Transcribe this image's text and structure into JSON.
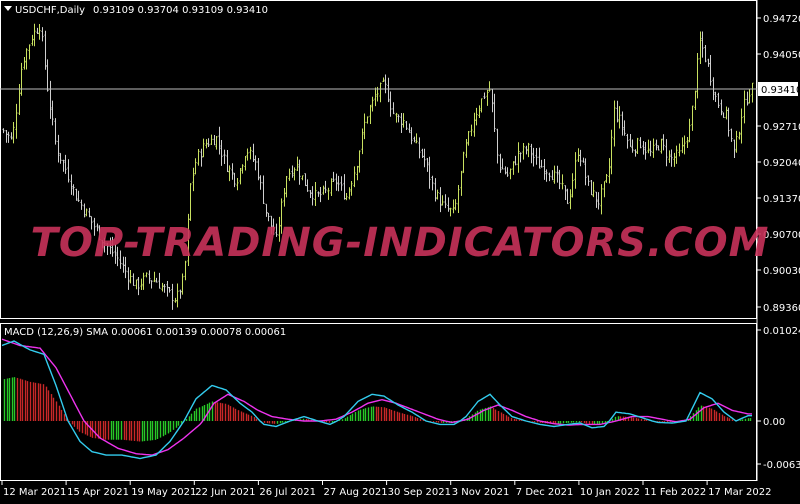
{
  "main_chart": {
    "header_label": "USDCHF,Daily",
    "ohlc_label": "0.93109 0.93704 0.93109 0.93410",
    "bid_line_label": "0.93410",
    "price_axis": [
      "0.94720",
      "0.94050",
      "0.92710",
      "0.92040",
      "0.91370",
      "0.90700",
      "0.90030",
      "0.89360"
    ]
  },
  "indicator": {
    "header_label": "MACD (12,26,9) SMA 0.00061 0.00139 0.00078 0.00061",
    "axis_labels": [
      "0.01024",
      "0.00",
      "-0.00631"
    ]
  },
  "time_axis": [
    "12 Mar 2021",
    "15 Apr 2021",
    "19 May 2021",
    "22 Jun 2021",
    "26 Jul 2021",
    "27 Aug 2021",
    "30 Sep 2021",
    "3 Nov 2021",
    "7 Dec 2021",
    "10 Jan 2022",
    "11 Feb 2022",
    "17 Mar 2022"
  ],
  "watermark": "TOP-TRADING-INDICATORS.COM",
  "colors": {
    "bull_bar": "#c8e060",
    "bear_bar": "#cfcfcf",
    "hist_up": "#28c828",
    "hist_down": "#c82828",
    "macd_line": "#33ccee",
    "signal_line": "#ee33ee",
    "grid_text": "#ffffff",
    "watermark": "#c8325a"
  },
  "chart_data": [
    {
      "type": "ohlc",
      "title": "USDCHF,Daily",
      "ylim": [
        0.892,
        0.9505
      ],
      "x": [
        "12 Mar 2021",
        "15 Apr 2021",
        "19 May 2021",
        "22 Jun 2021",
        "26 Jul 2021",
        "27 Aug 2021",
        "30 Sep 2021",
        "3 Nov 2021",
        "7 Dec 2021",
        "10 Jan 2022",
        "11 Feb 2022",
        "17 Mar 2022"
      ],
      "close": [
        0.925,
        0.922,
        0.898,
        0.925,
        0.915,
        0.923,
        0.932,
        0.915,
        0.925,
        0.916,
        0.925,
        0.9341
      ]
    },
    {
      "type": "line",
      "title": "MACD (12,26,9) SMA",
      "ylim": [
        -0.00631,
        0.01024
      ],
      "x": [
        "12 Mar 2021",
        "15 Apr 2021",
        "19 May 2021",
        "22 Jun 2021",
        "26 Jul 2021",
        "27 Aug 2021",
        "30 Sep 2021",
        "3 Nov 2021",
        "7 Dec 2021",
        "10 Jan 2022",
        "11 Feb 2022",
        "17 Mar 2022"
      ],
      "series": [
        {
          "name": "MACD",
          "values": [
            0.0085,
            0.0,
            -0.0055,
            0.004,
            -0.0008,
            0.0,
            0.0025,
            0.0022,
            0.0,
            -0.0008,
            0.0,
            0.0006
          ]
        },
        {
          "name": "Signal",
          "values": [
            0.009,
            0.005,
            -0.005,
            0.003,
            0.001,
            0.0,
            0.002,
            0.0018,
            0.0008,
            -0.0005,
            -0.0002,
            0.0008
          ]
        }
      ]
    }
  ]
}
